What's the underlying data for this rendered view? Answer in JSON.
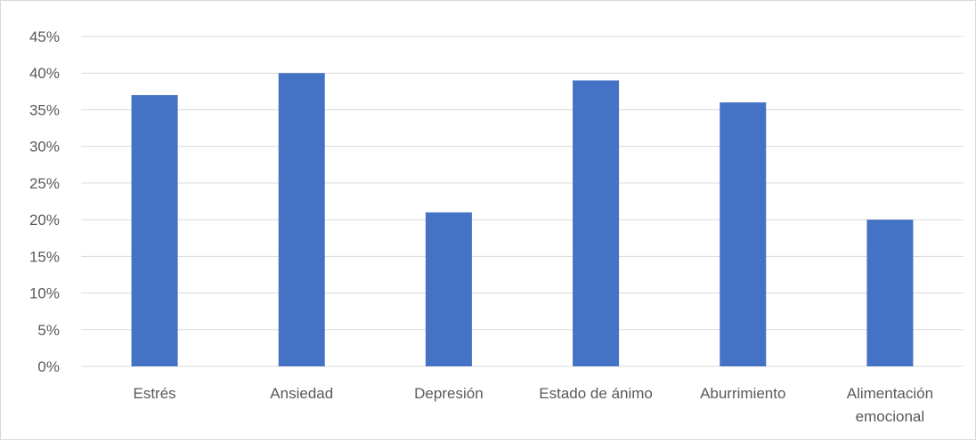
{
  "chart_data": {
    "type": "bar",
    "categories": [
      [
        "Estrés"
      ],
      [
        "Ansiedad"
      ],
      [
        "Depresión"
      ],
      [
        "Estado de ánimo"
      ],
      [
        "Aburrimiento"
      ],
      [
        "Alimentación",
        "emocional"
      ]
    ],
    "values": [
      37,
      40,
      21,
      39,
      36,
      20
    ],
    "y_ticks": [
      "0%",
      "5%",
      "10%",
      "15%",
      "20%",
      "25%",
      "30%",
      "35%",
      "40%",
      "45%"
    ],
    "ylim": [
      0,
      45
    ],
    "y_step": 5,
    "grid": true,
    "legend": "none",
    "colors": {
      "bar": "#4472C4",
      "grid": "#d9d9d9",
      "text": "#595959",
      "border": "#d9d9d9"
    }
  }
}
